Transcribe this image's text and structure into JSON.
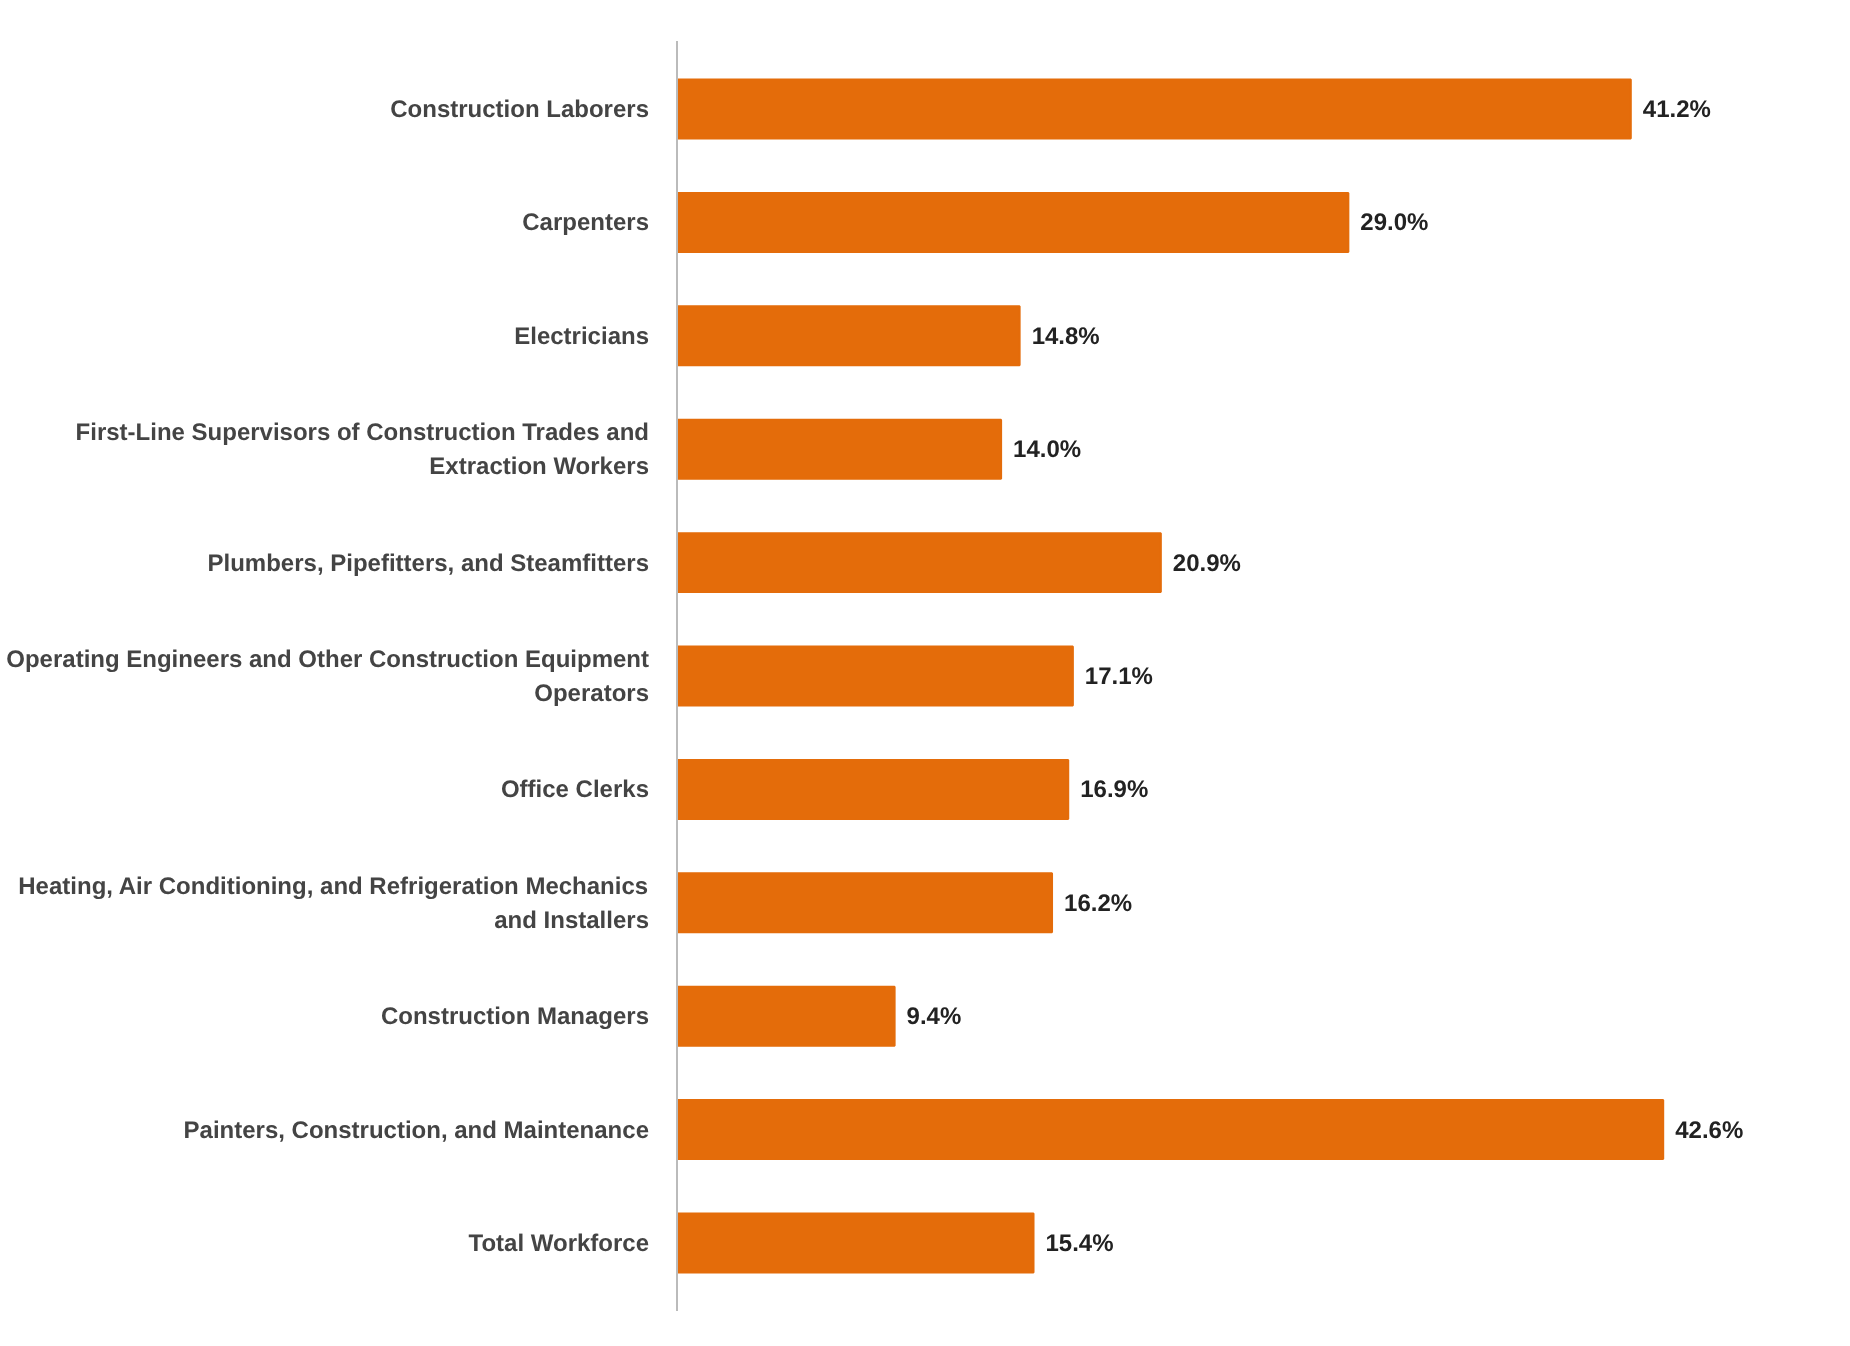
{
  "chart_data": {
    "type": "bar",
    "orientation": "horizontal",
    "grid": false,
    "categories": [
      "Construction Laborers",
      "Carpenters",
      "Electricians",
      "First-Line Supervisors of Construction Trades and Extraction Workers",
      "Plumbers, Pipefitters, and Steamfitters",
      "Operating Engineers and Other Construction Equipment Operators",
      "Office Clerks",
      "Heating, Air Conditioning, and Refrigeration Mechanics and Installers",
      "Construction Managers",
      "Painters, Construction, and Maintenance",
      "Total Workforce"
    ],
    "values": [
      41.2,
      29.0,
      14.8,
      14.0,
      20.9,
      17.1,
      16.9,
      16.2,
      9.4,
      42.6,
      15.4
    ],
    "value_labels": [
      "41.2%",
      "29.0%",
      "14.8%",
      "14.0%",
      "20.9%",
      "17.1%",
      "16.9%",
      "16.2%",
      "9.4%",
      "42.6%",
      "15.4%"
    ],
    "color": "#e46c0a"
  }
}
